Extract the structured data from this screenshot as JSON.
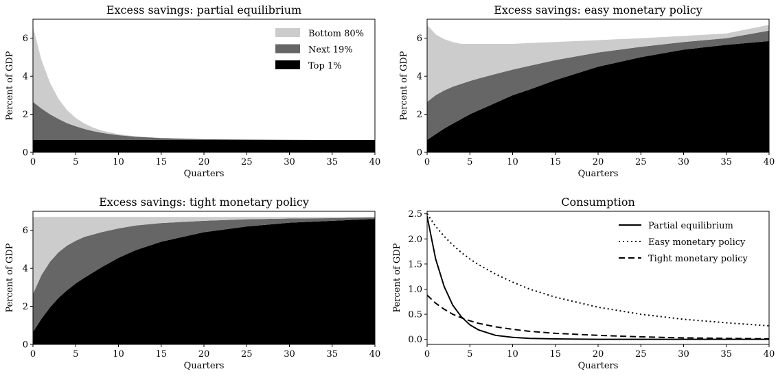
{
  "chart_data": [
    {
      "type": "area",
      "title": "Excess savings: partial equilibrium",
      "xlabel": "Quarters",
      "ylabel": "Percent of GDP",
      "xlim": [
        0,
        40
      ],
      "ylim": [
        0,
        7
      ],
      "xticks": [
        0,
        5,
        10,
        15,
        20,
        25,
        30,
        35,
        40
      ],
      "yticks": [
        0,
        2,
        4,
        6
      ],
      "stacked": true,
      "legend": "top-right",
      "colors": {
        "Bottom 80%": "#cccccc",
        "Next 19%": "#666666",
        "Top 1%": "#000000"
      },
      "x": [
        0,
        1,
        2,
        3,
        4,
        5,
        6,
        7,
        8,
        9,
        10,
        12,
        15,
        20,
        25,
        30,
        35,
        40
      ],
      "series": [
        {
          "name": "Top 1%",
          "values": [
            0.65,
            0.65,
            0.65,
            0.65,
            0.65,
            0.65,
            0.65,
            0.65,
            0.65,
            0.65,
            0.65,
            0.65,
            0.65,
            0.65,
            0.65,
            0.65,
            0.65,
            0.65
          ]
        },
        {
          "name": "Next 19%",
          "values": [
            2.0,
            1.65,
            1.35,
            1.1,
            0.88,
            0.72,
            0.58,
            0.47,
            0.38,
            0.31,
            0.25,
            0.17,
            0.1,
            0.04,
            0.02,
            0.01,
            0.0,
            0.0
          ]
        },
        {
          "name": "Bottom 80%",
          "values": [
            3.95,
            2.55,
            1.65,
            1.05,
            0.68,
            0.44,
            0.29,
            0.19,
            0.12,
            0.08,
            0.05,
            0.02,
            0.01,
            0.0,
            0.0,
            0.0,
            0.0,
            0.0
          ]
        }
      ]
    },
    {
      "type": "area",
      "title": "Excess savings: easy monetary policy",
      "xlabel": "Quarters",
      "ylabel": "Percent of GDP",
      "xlim": [
        0,
        40
      ],
      "ylim": [
        0,
        7
      ],
      "xticks": [
        0,
        5,
        10,
        15,
        20,
        25,
        30,
        35,
        40
      ],
      "yticks": [
        0,
        2,
        4,
        6
      ],
      "stacked": true,
      "colors": {
        "Bottom 80%": "#cccccc",
        "Next 19%": "#666666",
        "Top 1%": "#000000"
      },
      "x": [
        0,
        1,
        2,
        3,
        4,
        5,
        6,
        8,
        10,
        12,
        15,
        20,
        25,
        30,
        35,
        40
      ],
      "series": [
        {
          "name": "Top 1%",
          "values": [
            0.65,
            0.95,
            1.25,
            1.5,
            1.75,
            2.0,
            2.2,
            2.6,
            3.0,
            3.3,
            3.8,
            4.5,
            5.0,
            5.4,
            5.65,
            5.85
          ]
        },
        {
          "name": "Next 19%",
          "values": [
            2.0,
            2.05,
            2.0,
            1.95,
            1.85,
            1.75,
            1.68,
            1.52,
            1.35,
            1.25,
            1.05,
            0.75,
            0.55,
            0.4,
            0.35,
            0.55
          ]
        },
        {
          "name": "Bottom 80%",
          "values": [
            4.05,
            3.2,
            2.7,
            2.35,
            2.1,
            1.95,
            1.82,
            1.58,
            1.35,
            1.2,
            0.95,
            0.65,
            0.45,
            0.32,
            0.25,
            0.3
          ]
        }
      ]
    },
    {
      "type": "area",
      "title": "Excess savings: tight monetary policy",
      "xlabel": "Quarters",
      "ylabel": "Percent of GDP",
      "xlim": [
        0,
        40
      ],
      "ylim": [
        0,
        7
      ],
      "xticks": [
        0,
        5,
        10,
        15,
        20,
        25,
        30,
        35,
        40
      ],
      "yticks": [
        0,
        2,
        4,
        6
      ],
      "stacked": true,
      "colors": {
        "Bottom 80%": "#cccccc",
        "Next 19%": "#666666",
        "Top 1%": "#000000"
      },
      "x": [
        0,
        1,
        2,
        3,
        4,
        5,
        6,
        8,
        10,
        12,
        15,
        20,
        25,
        30,
        35,
        40
      ],
      "series": [
        {
          "name": "Top 1%",
          "values": [
            0.65,
            1.35,
            1.95,
            2.45,
            2.85,
            3.2,
            3.5,
            4.05,
            4.55,
            4.95,
            5.4,
            5.9,
            6.2,
            6.4,
            6.5,
            6.6
          ]
        },
        {
          "name": "Next 19%",
          "values": [
            2.0,
            2.3,
            2.4,
            2.4,
            2.35,
            2.25,
            2.15,
            1.85,
            1.55,
            1.3,
            0.98,
            0.6,
            0.38,
            0.22,
            0.14,
            0.08
          ]
        },
        {
          "name": "Bottom 80%",
          "values": [
            4.05,
            3.05,
            2.35,
            1.85,
            1.5,
            1.25,
            1.05,
            0.8,
            0.6,
            0.45,
            0.32,
            0.2,
            0.12,
            0.08,
            0.06,
            0.02
          ]
        }
      ]
    },
    {
      "type": "line",
      "title": "Consumption",
      "xlabel": "Quarters",
      "ylabel": "Percent of GDP",
      "xlim": [
        0,
        40
      ],
      "ylim": [
        -0.1,
        2.55
      ],
      "xticks": [
        0,
        5,
        10,
        15,
        20,
        25,
        30,
        35,
        40
      ],
      "yticks": [
        0.0,
        0.5,
        1.0,
        1.5,
        2.0,
        2.5
      ],
      "legend": "top-right",
      "x": [
        0,
        1,
        2,
        3,
        4,
        5,
        6,
        8,
        10,
        12,
        15,
        20,
        25,
        30,
        35,
        40
      ],
      "series": [
        {
          "name": "Partial equilibrium",
          "style": "solid",
          "values": [
            2.45,
            1.6,
            1.05,
            0.68,
            0.45,
            0.29,
            0.19,
            0.08,
            0.04,
            0.02,
            0.01,
            0.0,
            0.0,
            0.0,
            0.0,
            0.0
          ]
        },
        {
          "name": "Easy monetary policy",
          "style": "dotted",
          "values": [
            2.5,
            2.25,
            2.05,
            1.88,
            1.73,
            1.6,
            1.49,
            1.3,
            1.14,
            1.0,
            0.84,
            0.64,
            0.5,
            0.4,
            0.33,
            0.27
          ]
        },
        {
          "name": "Tight monetary policy",
          "style": "dashed",
          "values": [
            0.88,
            0.72,
            0.6,
            0.5,
            0.43,
            0.37,
            0.32,
            0.25,
            0.2,
            0.16,
            0.12,
            0.08,
            0.05,
            0.03,
            0.02,
            0.01
          ]
        }
      ]
    }
  ]
}
